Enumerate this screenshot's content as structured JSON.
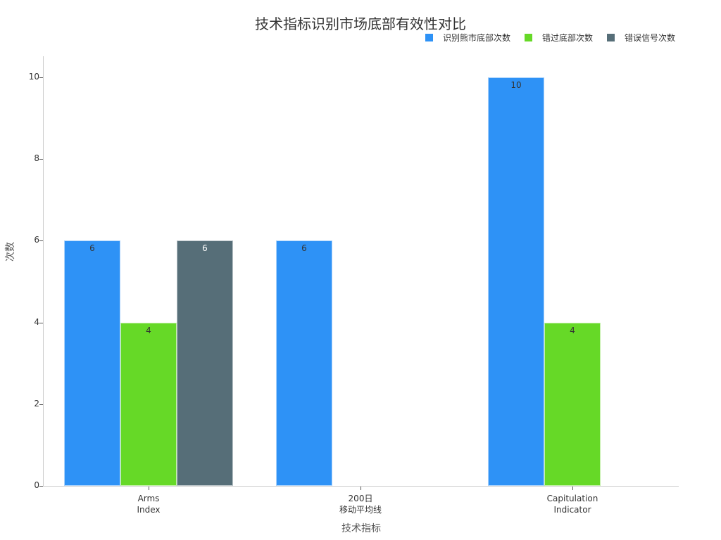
{
  "chart_data": {
    "type": "bar",
    "title": "技术指标识别市场底部有效性对比",
    "xlabel": "技术指标",
    "ylabel": "次数",
    "categories": [
      "Arms\nIndex",
      "200日\n移动平均线",
      "Capitulation\nIndicator"
    ],
    "series": [
      {
        "name": "识别熊市底部次数",
        "color": "#2E92F6",
        "values": [
          6,
          6,
          10
        ],
        "label_color": "#333333"
      },
      {
        "name": "错过底部次数",
        "color": "#66D927",
        "values": [
          4,
          0,
          4
        ],
        "label_color": "#333333"
      },
      {
        "name": "错误信号次数",
        "color": "#566E78",
        "values": [
          6,
          0,
          0
        ],
        "label_color": "#ffffff"
      }
    ],
    "ylim": [
      0,
      10.5
    ],
    "yticks": [
      0,
      2,
      4,
      6,
      8,
      10
    ],
    "grid": false,
    "legend_position": "top-right"
  }
}
